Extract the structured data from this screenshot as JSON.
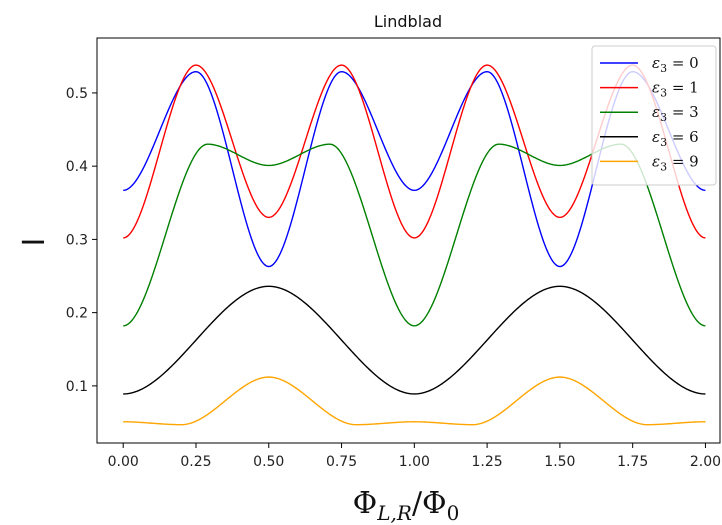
{
  "chart_data": {
    "type": "line",
    "title": "Lindblad",
    "ylabel": "I",
    "xlabel": "Φ_{L,R}/Φ_0",
    "xlim": [
      -0.09,
      2.05
    ],
    "ylim": [
      0.022,
      0.575
    ],
    "xticks": [
      0.0,
      0.25,
      0.5,
      0.75,
      1.0,
      1.25,
      1.5,
      1.75,
      2.0
    ],
    "xtick_labels": [
      "0.00",
      "0.25",
      "0.50",
      "0.75",
      "1.00",
      "1.25",
      "1.50",
      "1.75",
      "2.00"
    ],
    "yticks": [
      0.1,
      0.2,
      0.3,
      0.4,
      0.5
    ],
    "ytick_labels": [
      "0.1",
      "0.2",
      "0.3",
      "0.4",
      "0.5"
    ],
    "grid": false,
    "legend_position": "top-right",
    "series": [
      {
        "name": "ε3 = 0",
        "color": "#0000ff",
        "x": [
          0.0,
          0.25,
          0.5,
          0.75,
          1.0,
          1.25,
          1.5,
          1.75,
          2.0
        ],
        "y": [
          0.367,
          0.529,
          0.263,
          0.529,
          0.367,
          0.529,
          0.263,
          0.529,
          0.367
        ]
      },
      {
        "name": "ε3 = 1",
        "color": "#ff0000",
        "x": [
          0.0,
          0.25,
          0.5,
          0.75,
          1.0,
          1.25,
          1.5,
          1.75,
          2.0
        ],
        "y": [
          0.302,
          0.538,
          0.33,
          0.538,
          0.302,
          0.538,
          0.33,
          0.538,
          0.302
        ]
      },
      {
        "name": "ε3 = 3",
        "color": "#008000",
        "x": [
          0.0,
          0.29,
          0.5,
          0.71,
          1.0,
          1.29,
          1.5,
          1.71,
          2.0
        ],
        "y": [
          0.182,
          0.43,
          0.401,
          0.43,
          0.182,
          0.43,
          0.401,
          0.43,
          0.182
        ]
      },
      {
        "name": "ε3 = 6",
        "color": "#000000",
        "x": [
          0.0,
          0.5,
          1.0,
          1.5,
          2.0
        ],
        "y": [
          0.089,
          0.236,
          0.089,
          0.236,
          0.089
        ]
      },
      {
        "name": "ε3 = 9",
        "color": "#ffa500",
        "x": [
          0.0,
          0.2,
          0.5,
          0.8,
          1.0,
          1.2,
          1.5,
          1.8,
          2.0
        ],
        "y": [
          0.051,
          0.047,
          0.112,
          0.047,
          0.051,
          0.047,
          0.112,
          0.047,
          0.051
        ]
      }
    ]
  }
}
